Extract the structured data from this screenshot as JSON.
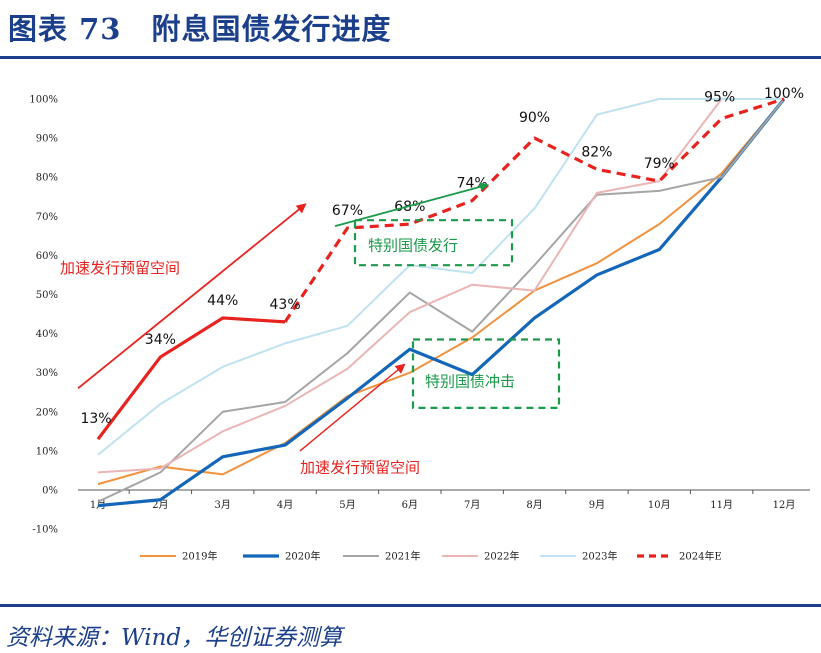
{
  "header": {
    "title": "图表 73　附息国债发行进度"
  },
  "footer": {
    "source": "资料来源：Wind，华创证券测算"
  },
  "colors": {
    "brand": "#1b3f8b",
    "s2019": "#f0923e",
    "s2020": "#1467b8",
    "s2021": "#a5a5a5",
    "s2022": "#eab5b5",
    "s2023": "#bfe2f0",
    "s2024": "#e8231f",
    "arrow": "#e8231f",
    "box": "#1a9a4a"
  },
  "chart_data": {
    "type": "line",
    "categories": [
      "1月",
      "2月",
      "3月",
      "4月",
      "5月",
      "6月",
      "7月",
      "8月",
      "9月",
      "10月",
      "11月",
      "12月"
    ],
    "y_ticks": [
      "-10%",
      "0%",
      "10%",
      "20%",
      "30%",
      "40%",
      "50%",
      "60%",
      "70%",
      "80%",
      "90%",
      "100%"
    ],
    "ylim": [
      -10,
      100
    ],
    "series": [
      {
        "name": "2019年",
        "color": "#f0923e",
        "width": 2,
        "dash": false,
        "values": [
          1.5,
          6,
          4,
          12,
          24,
          30,
          39,
          51,
          58,
          68,
          81,
          100
        ]
      },
      {
        "name": "2020年",
        "color": "#1467b8",
        "width": 3.2,
        "dash": false,
        "values": [
          -4,
          -2.5,
          8.5,
          11.5,
          23.5,
          36,
          29.5,
          44,
          55,
          61.5,
          80,
          100
        ]
      },
      {
        "name": "2021年",
        "color": "#a5a5a5",
        "width": 2,
        "dash": false,
        "values": [
          -3,
          4.5,
          20,
          22.5,
          35,
          50.5,
          40.5,
          57.5,
          75.5,
          76.5,
          80,
          100
        ]
      },
      {
        "name": "2022年",
        "color": "#eab5b5",
        "width": 2,
        "dash": false,
        "values": [
          4.5,
          5.5,
          15,
          21.5,
          31,
          45.5,
          52.5,
          51,
          76,
          79,
          100,
          100
        ]
      },
      {
        "name": "2023年",
        "color": "#bfe2f0",
        "width": 2,
        "dash": false,
        "values": [
          9,
          22,
          31.5,
          37.5,
          42,
          57.5,
          55.5,
          72,
          96,
          100,
          100,
          100
        ]
      },
      {
        "name": "2024年E",
        "color": "#e8231f",
        "width": 3.2,
        "dash_from": 4,
        "values": [
          13,
          34,
          44,
          43,
          67,
          68,
          74,
          90,
          82,
          79,
          95,
          100
        ],
        "labels": [
          "13%",
          "34%",
          "44%",
          "43%",
          "67%",
          "68%",
          "74%",
          "90%",
          "82%",
          "79%",
          "95%",
          "100%"
        ]
      }
    ],
    "annotations": {
      "accel_1": "加速发行预留空间",
      "accel_2": "加速发行预留空间",
      "special_issue": "特别国债发行",
      "special_impact": "特别国债冲击"
    }
  }
}
